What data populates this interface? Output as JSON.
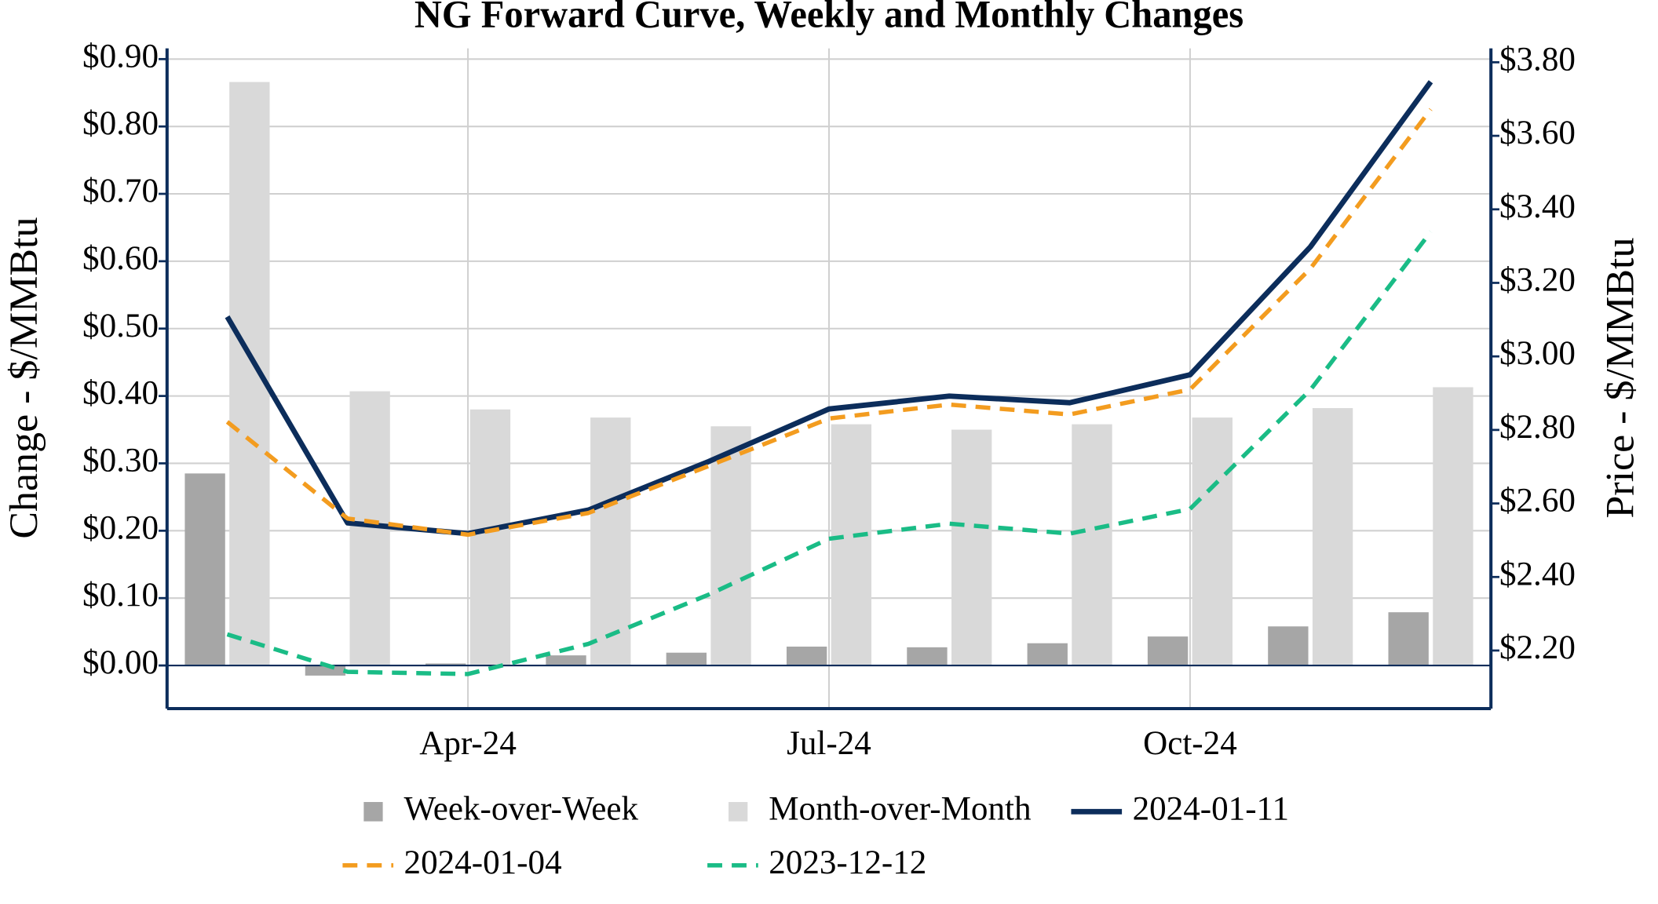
{
  "chart_data": {
    "type": "bar-line",
    "title": "NG Forward Curve, Weekly and Monthly Changes",
    "y_label": "Change - $/MMBtu",
    "y2_label": "Price - $/MMBtu",
    "categories": [
      null,
      null,
      "Apr-24",
      null,
      null,
      "Jul-24",
      null,
      null,
      "Oct-24",
      null,
      null
    ],
    "ylim": [
      -0.064,
      0.916
    ],
    "yticks": [
      {
        "value": 0,
        "label": "$0.00"
      },
      {
        "value": 0.1,
        "label": "$0.10"
      },
      {
        "value": 0.2,
        "label": "$0.20"
      },
      {
        "value": 0.3,
        "label": "$0.30"
      },
      {
        "value": 0.4,
        "label": "$0.40"
      },
      {
        "value": 0.5,
        "label": "$0.50"
      },
      {
        "value": 0.6,
        "label": "$0.60"
      },
      {
        "value": 0.7,
        "label": "$0.70"
      },
      {
        "value": 0.8,
        "label": "$0.80"
      },
      {
        "value": 0.9,
        "label": "$0.90"
      }
    ],
    "y2lim": [
      2.042,
      3.838
    ],
    "y2ticks": [
      {
        "value": 2.2,
        "label": "$2.20"
      },
      {
        "value": 2.4,
        "label": "$2.40"
      },
      {
        "value": 2.6,
        "label": "$2.60"
      },
      {
        "value": 2.8,
        "label": "$2.80"
      },
      {
        "value": 3.0,
        "label": "$3.00"
      },
      {
        "value": 3.2,
        "label": "$3.20"
      },
      {
        "value": 3.4,
        "label": "$3.40"
      },
      {
        "value": 3.6,
        "label": "$3.60"
      },
      {
        "value": 3.8,
        "label": "$3.80"
      }
    ],
    "grid": true,
    "series": [
      {
        "name": "Week-over-Week",
        "type": "bar",
        "color": "#a6a6a6",
        "values": [
          0.285,
          -0.015,
          0.003,
          0.015,
          0.019,
          0.028,
          0.027,
          0.033,
          0.043,
          0.058,
          0.079
        ]
      },
      {
        "name": "Month-over-Month",
        "type": "bar",
        "color": "#d9d9d9",
        "values": [
          0.866,
          0.407,
          0.38,
          0.368,
          0.355,
          0.358,
          0.35,
          0.358,
          0.368,
          0.382,
          0.413
        ]
      },
      {
        "name": "2024-01-11",
        "type": "line",
        "axis": "y2",
        "style": "solid",
        "color": "#0c2d5b",
        "values": [
          3.108,
          2.547,
          2.518,
          2.582,
          2.714,
          2.857,
          2.892,
          2.874,
          2.95,
          3.298,
          3.747
        ]
      },
      {
        "name": "2024-01-04",
        "type": "line",
        "axis": "y2",
        "style": "dashed",
        "color": "#f39c1f",
        "values": [
          2.822,
          2.559,
          2.515,
          2.574,
          2.702,
          2.831,
          2.869,
          2.842,
          2.91,
          3.239,
          3.672
        ]
      },
      {
        "name": "2023-12-12",
        "type": "line",
        "axis": "y2",
        "style": "dashed",
        "color": "#1abc86",
        "values": [
          2.244,
          2.142,
          2.136,
          2.218,
          2.352,
          2.504,
          2.545,
          2.518,
          2.585,
          2.909,
          3.339
        ]
      }
    ]
  }
}
